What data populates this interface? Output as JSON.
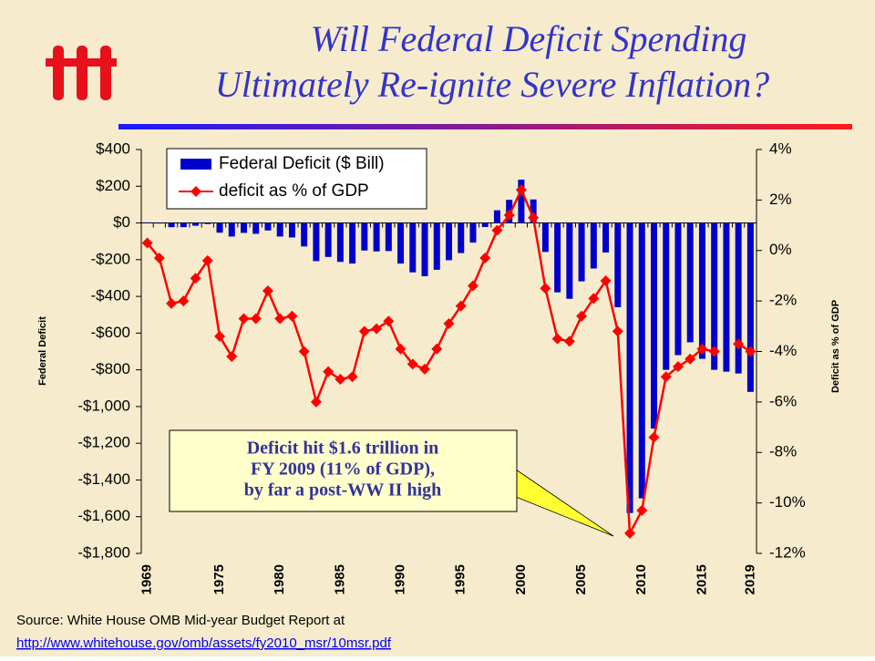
{
  "chart_data": {
    "type": "bar",
    "title": [
      "Will Federal Deficit Spending",
      "Ultimately Re-ignite Severe Inflation?"
    ],
    "y_label": "Federal Deficit",
    "y2_label": "Deficit as % of GDP",
    "annotation": [
      "Deficit hit $1.6 trillion in",
      "FY 2009 (11% of GDP),",
      "by far a post-WW II high"
    ],
    "source": "Source: White House OMB Mid-year Budget Report at",
    "source_url": "http://www.whitehouse.gov/omb/assets/fy2010_msr/10msr.pdf",
    "categories": [
      "1969",
      null,
      null,
      null,
      null,
      null,
      "1975",
      null,
      null,
      null,
      null,
      "1980",
      null,
      null,
      null,
      null,
      "1985",
      null,
      null,
      null,
      null,
      "1990",
      null,
      null,
      null,
      null,
      "1995",
      null,
      null,
      null,
      null,
      "2000",
      null,
      null,
      null,
      null,
      "2005",
      null,
      null,
      null,
      null,
      "2010",
      null,
      null,
      null,
      null,
      "2015",
      null,
      null,
      null,
      "2019"
    ],
    "series": [
      {
        "name": "Federal Deficit ($ Bill)",
        "type": "bar",
        "color": "#0000cc",
        "values": [
          3,
          -3,
          -23,
          -23,
          -15,
          -6,
          -53,
          -74,
          -54,
          -59,
          -41,
          -74,
          -79,
          -128,
          -208,
          -185,
          -212,
          -221,
          -150,
          -155,
          -153,
          -221,
          -269,
          -290,
          -255,
          -203,
          -164,
          -107,
          -22,
          69,
          126,
          236,
          128,
          -158,
          -378,
          -413,
          -318,
          -248,
          -161,
          -459,
          -1580,
          -1500,
          -1120,
          -800,
          -720,
          -650,
          -740,
          -800,
          -810,
          -820,
          -920
        ]
      },
      {
        "name": "deficit as % of GDP",
        "type": "line",
        "axis": "y2",
        "color": "#ff0000",
        "values": [
          0.3,
          -0.3,
          -2.1,
          -2.0,
          -1.1,
          -0.4,
          -3.4,
          -4.2,
          -2.7,
          -2.7,
          -1.6,
          -2.7,
          -2.6,
          -4.0,
          -6.0,
          -4.8,
          -5.1,
          -5.0,
          -3.2,
          -3.1,
          -2.8,
          -3.9,
          -4.5,
          -4.7,
          -3.9,
          -2.9,
          -2.2,
          -1.4,
          -0.3,
          0.8,
          1.4,
          2.4,
          1.3,
          -1.5,
          -3.5,
          -3.6,
          -2.6,
          -1.9,
          -1.2,
          -3.2,
          -11.2,
          -10.3,
          -7.4,
          -5.0,
          -4.6,
          -4.3,
          -3.9,
          -4.0,
          null,
          -3.7,
          -4.0
        ]
      }
    ],
    "ylim": [
      -1800,
      400
    ],
    "yticks": [
      {
        "value": 400,
        "label": "$400"
      },
      {
        "value": 200,
        "label": "$200"
      },
      {
        "value": 0,
        "label": "$0"
      },
      {
        "value": -200,
        "label": "-$200"
      },
      {
        "value": -400,
        "label": "-$400"
      },
      {
        "value": -600,
        "label": "-$600"
      },
      {
        "value": -800,
        "label": "-$800"
      },
      {
        "value": -1000,
        "label": "-$1,000"
      },
      {
        "value": -1200,
        "label": "-$1,200"
      },
      {
        "value": -1400,
        "label": "-$1,400"
      },
      {
        "value": -1600,
        "label": "-$1,600"
      },
      {
        "value": -1800,
        "label": "-$1,800"
      }
    ],
    "y2lim": [
      -12,
      4
    ],
    "y2ticks": [
      {
        "value": 4,
        "label": "4%"
      },
      {
        "value": 2,
        "label": "2%"
      },
      {
        "value": 0,
        "label": "0%"
      },
      {
        "value": -2,
        "label": "-2%"
      },
      {
        "value": -4,
        "label": "-4%"
      },
      {
        "value": -6,
        "label": "-6%"
      },
      {
        "value": -8,
        "label": "-8%"
      },
      {
        "value": -10,
        "label": "-10%"
      },
      {
        "value": -12,
        "label": "-12%"
      }
    ]
  }
}
